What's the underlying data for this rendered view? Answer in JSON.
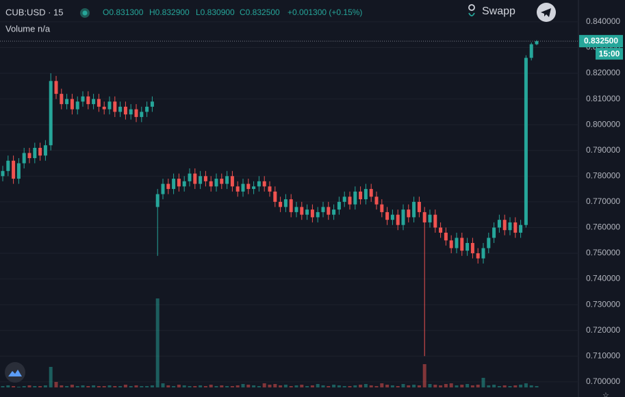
{
  "chart_data": {
    "type": "candlestick",
    "title": "CUB:USD · 15",
    "ohlc_labels": [
      "O0.831300",
      "H0.832900",
      "L0.830900",
      "C0.832500"
    ],
    "change_label": "+0.001300 (+0.15%)",
    "volume_label": "Volume n/a",
    "brand": "Swapp",
    "last_price_label": "0.832500",
    "countdown_label": "15:00",
    "up_color": "#26a69a",
    "down_color": "#ef5350",
    "grid": true,
    "ylim": [
      0.6941,
      0.8485
    ],
    "yticks": [
      {
        "value": 0.7,
        "label": "0.700000"
      },
      {
        "value": 0.71,
        "label": "0.710000"
      },
      {
        "value": 0.72,
        "label": "0.720000"
      },
      {
        "value": 0.73,
        "label": "0.730000"
      },
      {
        "value": 0.74,
        "label": "0.740000"
      },
      {
        "value": 0.75,
        "label": "0.750000"
      },
      {
        "value": 0.76,
        "label": "0.760000"
      },
      {
        "value": 0.77,
        "label": "0.770000"
      },
      {
        "value": 0.78,
        "label": "0.780000"
      },
      {
        "value": 0.79,
        "label": "0.790000"
      },
      {
        "value": 0.8,
        "label": "0.800000"
      },
      {
        "value": 0.81,
        "label": "0.810000"
      },
      {
        "value": 0.82,
        "label": "0.820000"
      },
      {
        "value": 0.83,
        "label": "0.830000"
      },
      {
        "value": 0.84,
        "label": "0.840000"
      }
    ],
    "open": [
      0.78,
      0.782,
      0.786,
      0.779,
      0.785,
      0.789,
      0.787,
      0.791,
      0.788,
      0.792,
      0.817,
      0.812,
      0.808,
      0.81,
      0.806,
      0.809,
      0.811,
      0.808,
      0.81,
      0.807,
      0.806,
      0.809,
      0.805,
      0.807,
      0.804,
      0.806,
      0.803,
      0.805,
      0.807,
      0.768,
      0.773,
      0.777,
      0.775,
      0.779,
      0.776,
      0.778,
      0.781,
      0.777,
      0.78,
      0.778,
      0.776,
      0.779,
      0.777,
      0.78,
      0.776,
      0.774,
      0.777,
      0.775,
      0.776,
      0.778,
      0.776,
      0.774,
      0.77,
      0.768,
      0.771,
      0.766,
      0.768,
      0.765,
      0.767,
      0.764,
      0.766,
      0.768,
      0.765,
      0.767,
      0.77,
      0.772,
      0.769,
      0.774,
      0.771,
      0.775,
      0.772,
      0.769,
      0.766,
      0.763,
      0.765,
      0.761,
      0.767,
      0.764,
      0.77,
      0.766,
      0.762,
      0.765,
      0.76,
      0.758,
      0.755,
      0.752,
      0.756,
      0.751,
      0.754,
      0.75,
      0.748,
      0.752,
      0.756,
      0.76,
      0.763,
      0.759,
      0.762,
      0.758,
      0.761,
      0.826,
      0.8313
    ],
    "high": [
      0.784,
      0.788,
      0.788,
      0.787,
      0.791,
      0.791,
      0.793,
      0.793,
      0.794,
      0.82,
      0.819,
      0.814,
      0.812,
      0.812,
      0.811,
      0.813,
      0.813,
      0.812,
      0.812,
      0.809,
      0.811,
      0.811,
      0.809,
      0.809,
      0.808,
      0.808,
      0.807,
      0.809,
      0.811,
      0.775,
      0.779,
      0.779,
      0.781,
      0.781,
      0.78,
      0.783,
      0.783,
      0.782,
      0.782,
      0.78,
      0.781,
      0.781,
      0.782,
      0.782,
      0.778,
      0.779,
      0.779,
      0.778,
      0.78,
      0.78,
      0.778,
      0.776,
      0.772,
      0.773,
      0.773,
      0.77,
      0.77,
      0.769,
      0.769,
      0.768,
      0.77,
      0.77,
      0.769,
      0.772,
      0.774,
      0.774,
      0.776,
      0.776,
      0.777,
      0.777,
      0.774,
      0.771,
      0.768,
      0.767,
      0.767,
      0.769,
      0.769,
      0.772,
      0.772,
      0.768,
      0.767,
      0.767,
      0.762,
      0.76,
      0.757,
      0.758,
      0.758,
      0.756,
      0.756,
      0.752,
      0.754,
      0.758,
      0.762,
      0.765,
      0.765,
      0.764,
      0.764,
      0.763,
      0.827,
      0.832,
      0.8329
    ],
    "low": [
      0.778,
      0.78,
      0.777,
      0.777,
      0.783,
      0.785,
      0.785,
      0.786,
      0.786,
      0.79,
      0.81,
      0.806,
      0.806,
      0.804,
      0.804,
      0.807,
      0.806,
      0.806,
      0.805,
      0.804,
      0.804,
      0.803,
      0.803,
      0.802,
      0.802,
      0.801,
      0.801,
      0.803,
      0.805,
      0.749,
      0.771,
      0.773,
      0.773,
      0.774,
      0.774,
      0.776,
      0.775,
      0.775,
      0.776,
      0.774,
      0.774,
      0.775,
      0.775,
      0.774,
      0.772,
      0.772,
      0.773,
      0.773,
      0.774,
      0.774,
      0.772,
      0.768,
      0.766,
      0.766,
      0.764,
      0.764,
      0.763,
      0.763,
      0.762,
      0.762,
      0.764,
      0.763,
      0.763,
      0.765,
      0.768,
      0.767,
      0.767,
      0.769,
      0.769,
      0.77,
      0.767,
      0.764,
      0.761,
      0.761,
      0.759,
      0.759,
      0.762,
      0.762,
      0.764,
      0.71,
      0.76,
      0.758,
      0.756,
      0.753,
      0.75,
      0.75,
      0.749,
      0.749,
      0.748,
      0.746,
      0.746,
      0.75,
      0.754,
      0.758,
      0.757,
      0.757,
      0.756,
      0.756,
      0.76,
      0.825,
      0.8309
    ],
    "close": [
      0.782,
      0.786,
      0.779,
      0.785,
      0.789,
      0.787,
      0.791,
      0.788,
      0.792,
      0.817,
      0.812,
      0.808,
      0.81,
      0.806,
      0.809,
      0.811,
      0.808,
      0.81,
      0.807,
      0.806,
      0.809,
      0.805,
      0.807,
      0.804,
      0.806,
      0.803,
      0.805,
      0.807,
      0.809,
      0.773,
      0.777,
      0.775,
      0.779,
      0.776,
      0.778,
      0.781,
      0.777,
      0.78,
      0.778,
      0.776,
      0.779,
      0.777,
      0.78,
      0.776,
      0.774,
      0.777,
      0.775,
      0.776,
      0.778,
      0.776,
      0.774,
      0.77,
      0.768,
      0.771,
      0.766,
      0.768,
      0.765,
      0.767,
      0.764,
      0.766,
      0.768,
      0.765,
      0.767,
      0.77,
      0.772,
      0.769,
      0.774,
      0.771,
      0.775,
      0.772,
      0.769,
      0.766,
      0.763,
      0.765,
      0.761,
      0.767,
      0.764,
      0.77,
      0.766,
      0.762,
      0.765,
      0.76,
      0.758,
      0.755,
      0.752,
      0.756,
      0.751,
      0.754,
      0.75,
      0.748,
      0.752,
      0.756,
      0.76,
      0.763,
      0.759,
      0.762,
      0.758,
      0.761,
      0.826,
      0.8313,
      0.8325
    ],
    "volume": [
      2,
      3,
      2,
      1,
      2,
      3,
      2,
      2,
      3,
      30,
      8,
      3,
      2,
      4,
      2,
      3,
      2,
      3,
      2,
      2,
      3,
      2,
      2,
      4,
      2,
      3,
      2,
      2,
      3,
      130,
      6,
      3,
      2,
      4,
      3,
      2,
      2,
      3,
      2,
      4,
      2,
      3,
      2,
      2,
      3,
      5,
      4,
      3,
      2,
      6,
      4,
      5,
      3,
      4,
      2,
      3,
      4,
      2,
      3,
      5,
      3,
      2,
      4,
      3,
      2,
      2,
      3,
      4,
      5,
      3,
      2,
      6,
      4,
      3,
      2,
      5,
      3,
      4,
      3,
      34,
      5,
      4,
      3,
      5,
      6,
      3,
      4,
      5,
      3,
      4,
      14,
      3,
      4,
      2,
      3,
      2,
      3,
      4,
      6,
      3,
      2
    ]
  }
}
